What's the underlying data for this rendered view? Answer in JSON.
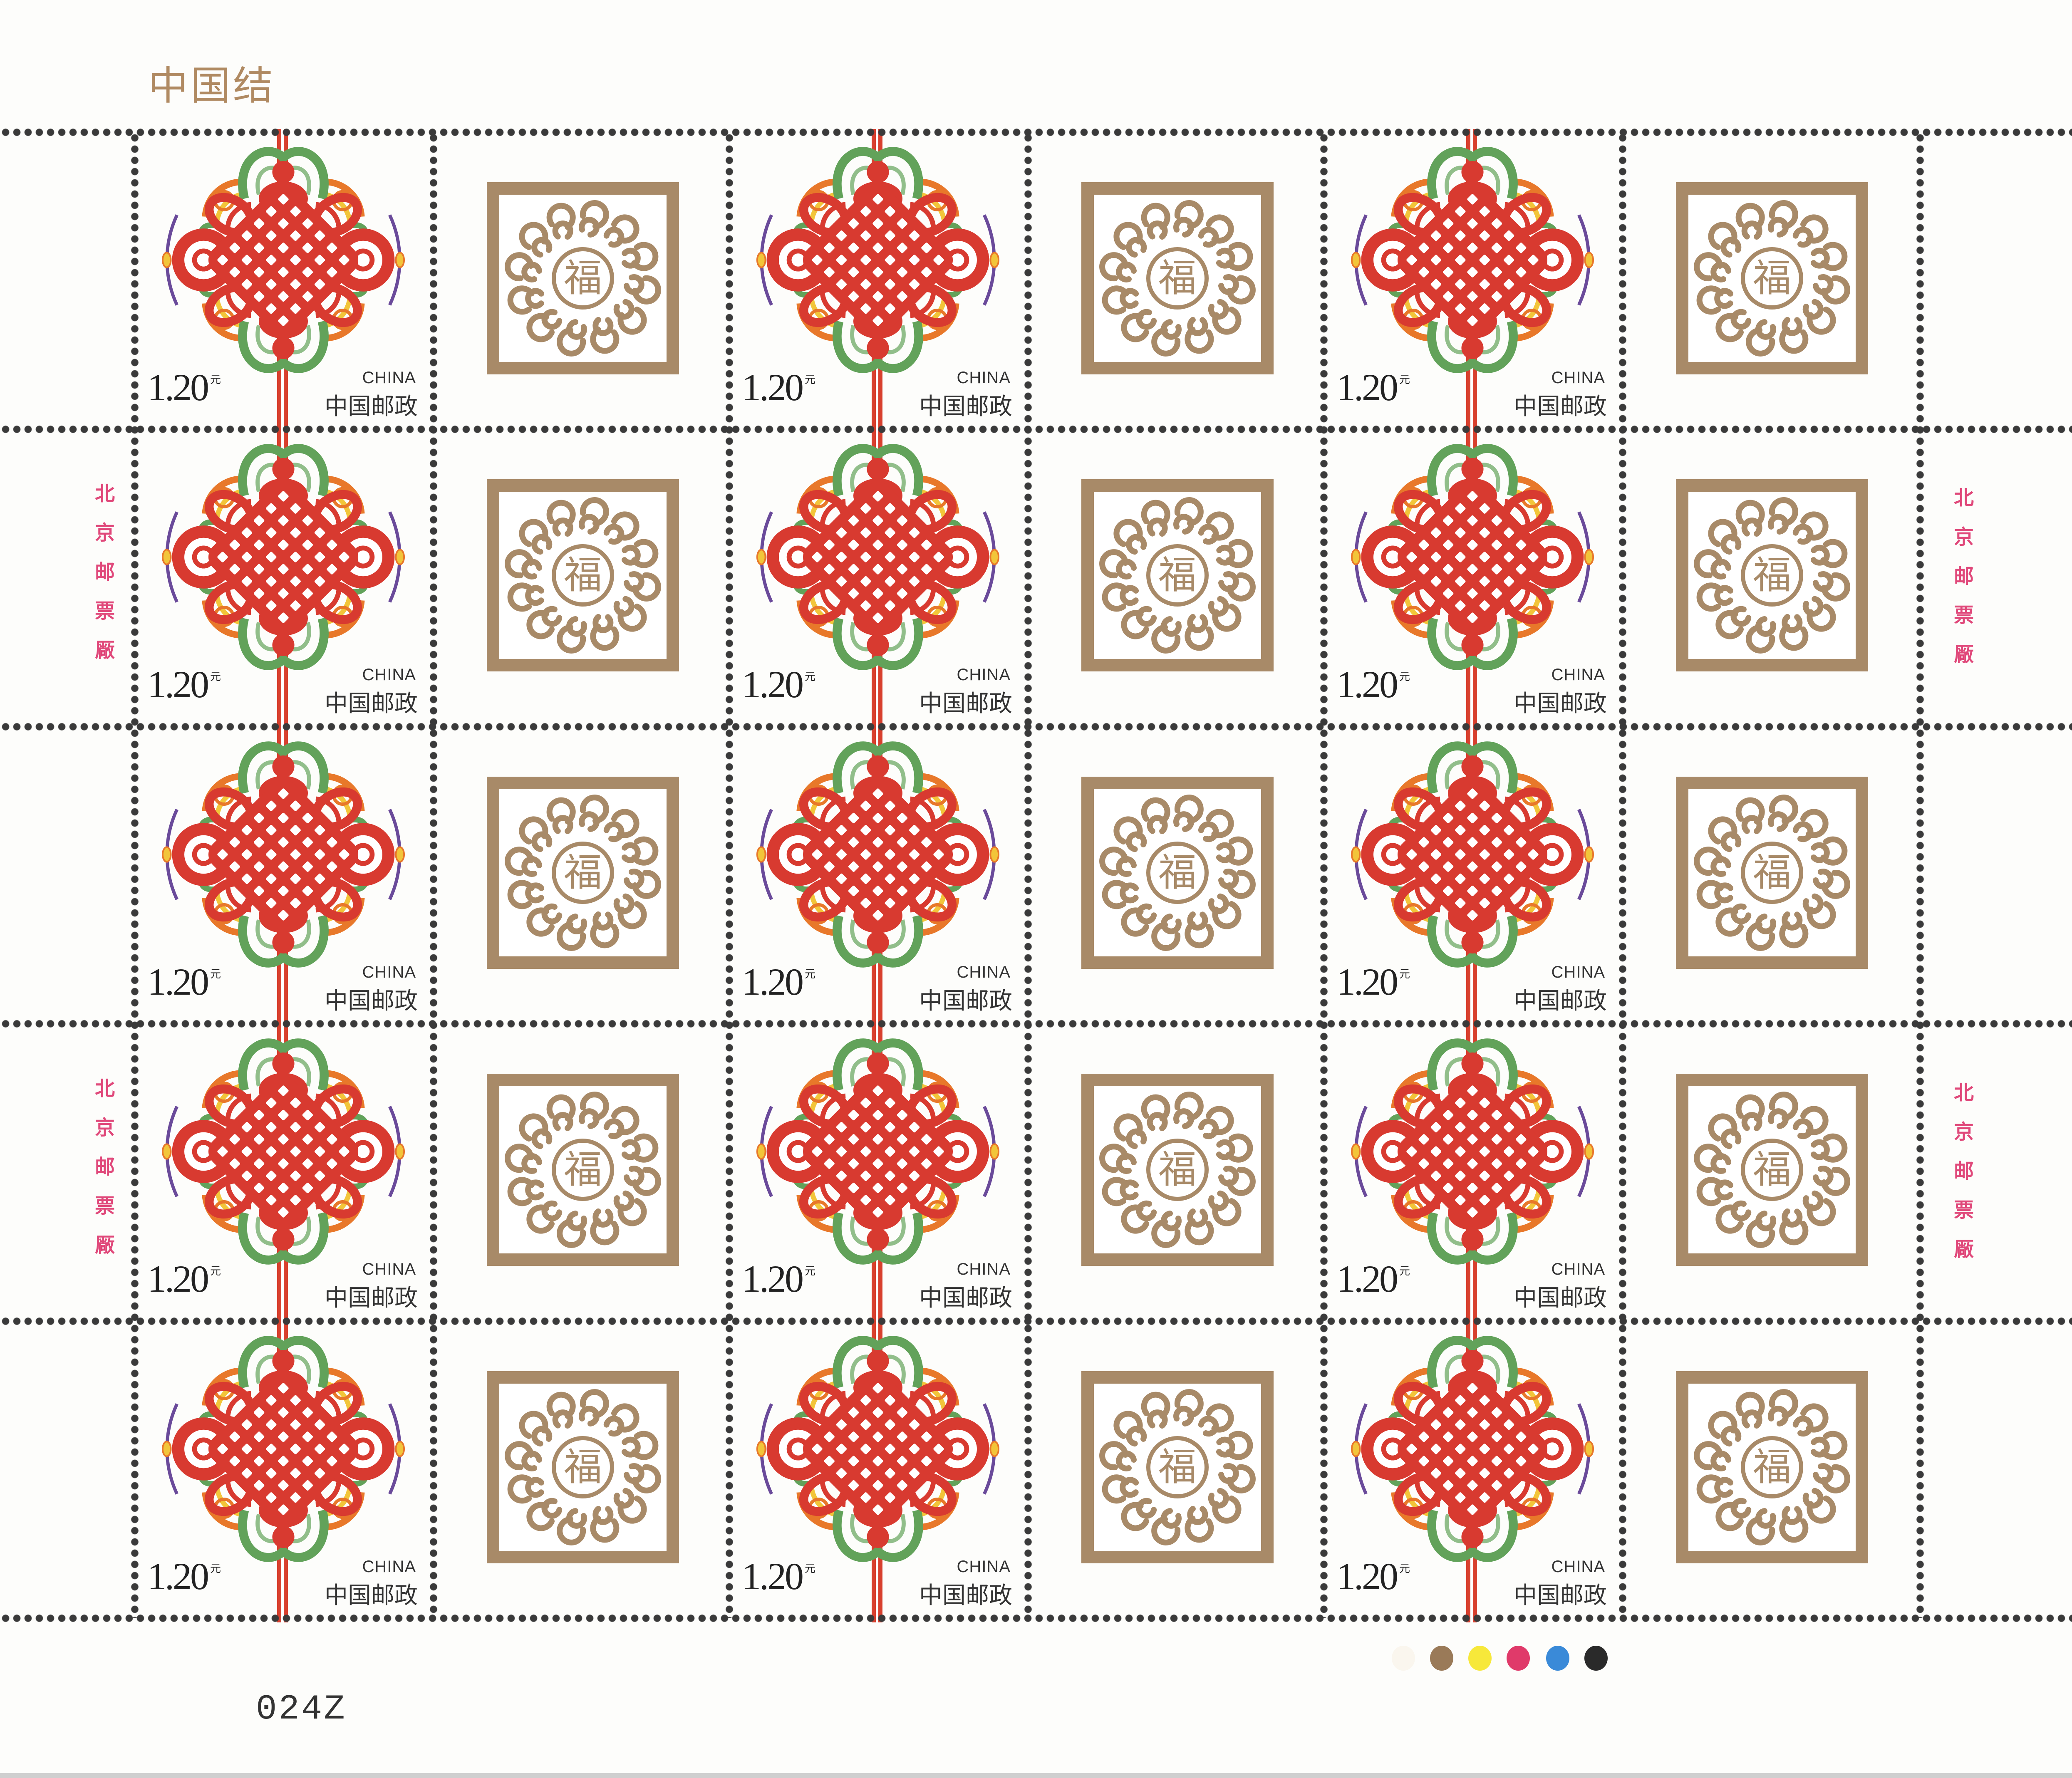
{
  "sheet": {
    "title": "中国结",
    "stamp": {
      "value": "1.20",
      "unit": "元",
      "country": "CHINA",
      "issuer": "中国邮政",
      "design_icon": "chinese-knot-icon",
      "colors": {
        "red": "#d83a30",
        "green": "#62a25a",
        "orange": "#e8782a",
        "yellow": "#f2c53a",
        "purple": "#6a4a9a"
      }
    },
    "label": {
      "character": "福",
      "frame_color": "#a88a68"
    },
    "imprint": {
      "text": [
        "北",
        "京",
        "邮",
        "票",
        "厰"
      ]
    },
    "serial_number": "024Z",
    "color_register_dots": [
      "#faf6ee",
      "#9a7a58",
      "#f7e83a",
      "#e03a6a",
      "#3a8ad8",
      "#2a2a2a"
    ]
  }
}
